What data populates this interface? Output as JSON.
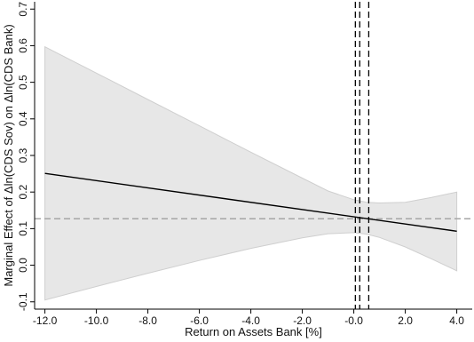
{
  "chart_data": {
    "type": "line",
    "xlabel": "Return on Assets Bank [%]",
    "ylabel": "Marginal Effect of Δln(CDS Sov) on Δln(CDS Bank)",
    "xlim": [
      -12.4,
      4.6
    ],
    "ylim": [
      -0.12,
      0.72
    ],
    "xticks": [
      -12,
      -10,
      -8,
      -6,
      -4,
      -2,
      0,
      2,
      4
    ],
    "xtick_labels": [
      "-12.0",
      "-10.0",
      "-8.0",
      "-6.0",
      "-4.0",
      "-2.0",
      "-0.0",
      "2.0",
      "4.0"
    ],
    "yticks": [
      -0.1,
      0,
      0.1,
      0.2,
      0.3,
      0.4,
      0.5,
      0.6,
      0.7
    ],
    "ytick_labels": [
      "-0.1",
      "0.0",
      "0.1",
      "0.2",
      "0.3",
      "0.4",
      "0.5",
      "0.6",
      "0.7"
    ],
    "grid": false,
    "series": [
      {
        "kind": "line",
        "color": "#000000",
        "x": [
          -12,
          4
        ],
        "y": [
          0.251,
          0.093
        ]
      },
      {
        "kind": "band",
        "color": "#e7e7e7",
        "edge_color": "#cfcfcf",
        "x": [
          -12,
          -10,
          -8,
          -6,
          -4,
          -2,
          -1,
          0,
          0.5,
          1,
          2,
          3,
          4
        ],
        "upper": [
          0.597,
          0.525,
          0.453,
          0.381,
          0.309,
          0.238,
          0.203,
          0.179,
          0.172,
          0.17,
          0.172,
          0.185,
          0.2
        ],
        "lower": [
          -0.095,
          -0.058,
          -0.022,
          0.013,
          0.046,
          0.075,
          0.086,
          0.089,
          0.085,
          0.076,
          0.05,
          0.018,
          -0.015
        ]
      }
    ],
    "reference_lines": [
      {
        "orientation": "horizontal",
        "value": 0.127,
        "style": "dashed",
        "color": "#a6a6a6"
      },
      {
        "orientation": "vertical",
        "value": 0.06,
        "style": "dashed",
        "color": "#000000"
      },
      {
        "orientation": "vertical",
        "value": 0.23,
        "style": "dashed",
        "color": "#000000"
      },
      {
        "orientation": "vertical",
        "value": 0.58,
        "style": "dashed",
        "color": "#000000"
      }
    ]
  }
}
